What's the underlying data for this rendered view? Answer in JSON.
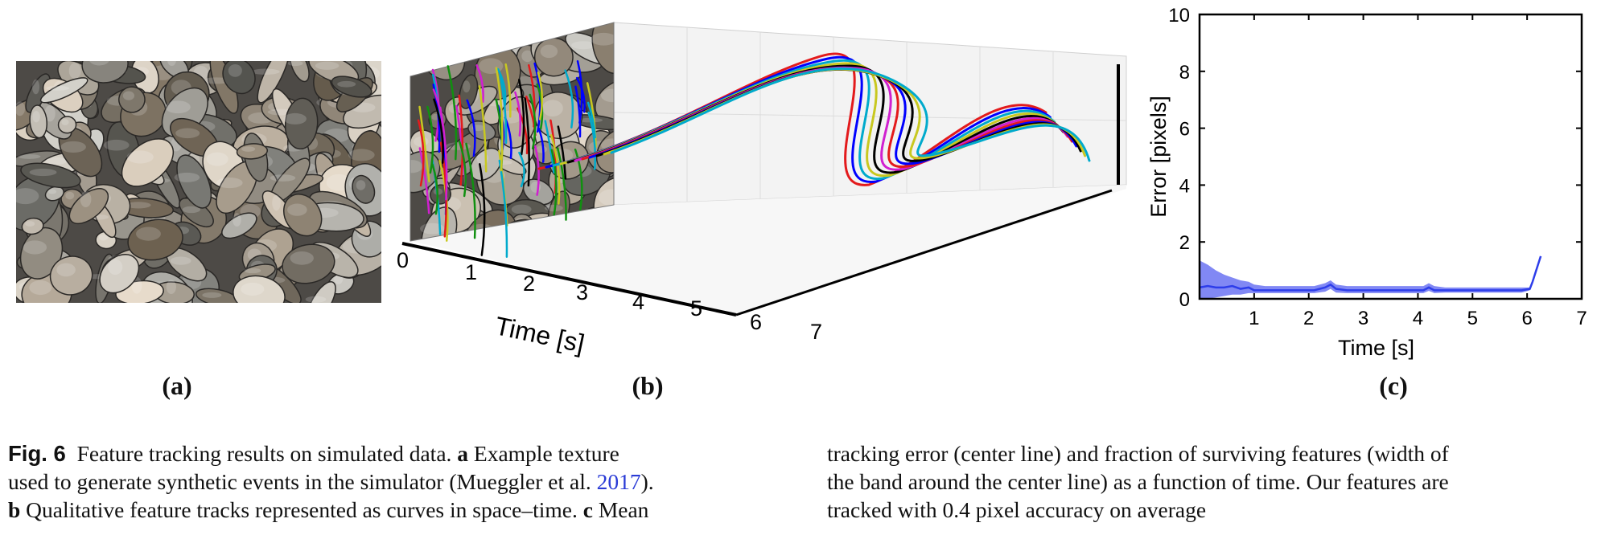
{
  "panels": {
    "a_label": "(a)",
    "b_label": "(b)",
    "c_label": "(c)"
  },
  "panel_b": {
    "xlabel": "Time [s]",
    "ticks": [
      "0",
      "1",
      "2",
      "3",
      "4",
      "5",
      "6",
      "7"
    ],
    "series_colors": [
      "#e31a1c",
      "#0000ff",
      "#00aacc",
      "#c8c820",
      "#000000",
      "#d020d0",
      "#109010"
    ]
  },
  "chart_data": {
    "type": "line",
    "xlabel": "Time [s]",
    "ylabel": "Error [pixels]",
    "xlim": [
      0,
      7
    ],
    "ylim": [
      0,
      10
    ],
    "xticks": [
      "1",
      "2",
      "3",
      "4",
      "5",
      "6",
      "7"
    ],
    "yticks": [
      "0",
      "2",
      "4",
      "6",
      "8",
      "10"
    ],
    "grid": false,
    "color": "#2d3dea",
    "band_color": "#6b73f2",
    "series": [
      {
        "x": [
          0.0,
          0.15,
          0.3,
          0.45,
          0.6,
          0.75,
          0.9,
          1.0,
          1.2,
          1.5,
          1.8,
          2.1,
          2.3,
          2.4,
          2.5,
          2.7,
          3.0,
          3.3,
          3.6,
          3.9,
          4.1,
          4.2,
          4.3,
          4.5,
          4.8,
          5.1,
          5.4,
          5.7,
          5.9,
          6.05,
          6.1,
          6.25
        ],
        "values": [
          0.4,
          0.45,
          0.4,
          0.4,
          0.45,
          0.35,
          0.4,
          0.3,
          0.3,
          0.3,
          0.3,
          0.3,
          0.4,
          0.5,
          0.35,
          0.3,
          0.3,
          0.3,
          0.3,
          0.3,
          0.3,
          0.4,
          0.3,
          0.3,
          0.3,
          0.3,
          0.3,
          0.3,
          0.3,
          0.35,
          0.6,
          1.5
        ],
        "band_upper": [
          1.35,
          1.2,
          1.0,
          0.85,
          0.75,
          0.65,
          0.6,
          0.5,
          0.45,
          0.45,
          0.45,
          0.45,
          0.55,
          0.65,
          0.5,
          0.45,
          0.45,
          0.45,
          0.45,
          0.45,
          0.45,
          0.55,
          0.45,
          0.4,
          0.4,
          0.4,
          0.4,
          0.4,
          0.4,
          0.4,
          0.65,
          1.5
        ],
        "band_lower": [
          0.0,
          0.0,
          0.05,
          0.1,
          0.15,
          0.15,
          0.2,
          0.2,
          0.2,
          0.2,
          0.2,
          0.2,
          0.25,
          0.35,
          0.22,
          0.2,
          0.2,
          0.2,
          0.2,
          0.2,
          0.2,
          0.28,
          0.2,
          0.22,
          0.22,
          0.22,
          0.22,
          0.22,
          0.22,
          0.3,
          0.55,
          1.5
        ]
      }
    ]
  },
  "caption": {
    "fig_label": "Fig. 6",
    "left_lines": [
      [
        {
          "t": "Feature tracking results on simulated data. "
        },
        {
          "t": "a",
          "b": true
        },
        {
          "t": " Example texture"
        }
      ],
      [
        {
          "t": "used to generate synthetic events in the simulator (Mueggler et al. "
        },
        {
          "t": "2017",
          "cite": true
        },
        {
          "t": ")."
        }
      ],
      [
        {
          "t": "b",
          "b": true
        },
        {
          "t": " Qualitative feature tracks represented as curves in space–time. "
        },
        {
          "t": "c",
          "b": true
        },
        {
          "t": " Mean"
        }
      ]
    ],
    "right_lines": [
      "tracking error (center line) and fraction of surviving features (width of",
      "the band around the center line) as a function of time. Our features are",
      "tracked with 0.4 pixel accuracy on average"
    ]
  }
}
